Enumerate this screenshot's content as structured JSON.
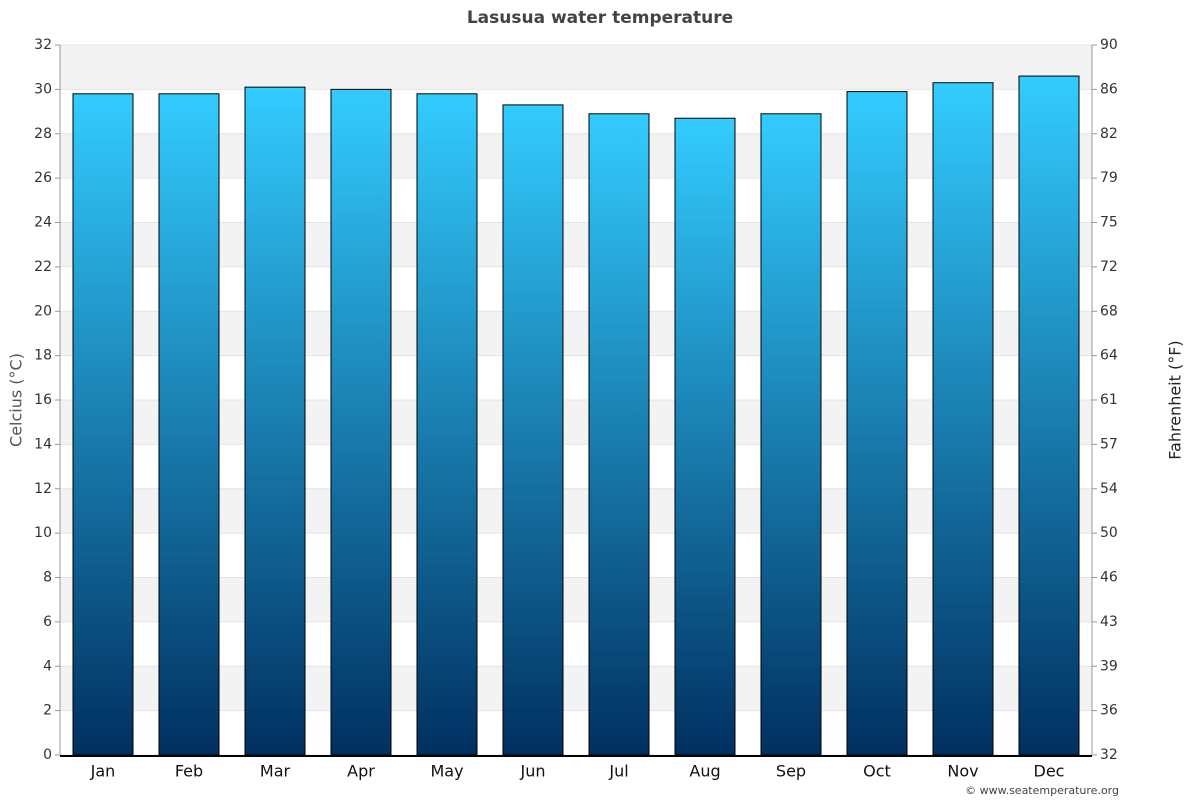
{
  "chart_data": {
    "type": "bar",
    "title": "Lasusua water temperature",
    "categories": [
      "Jan",
      "Feb",
      "Mar",
      "Apr",
      "May",
      "Jun",
      "Jul",
      "Aug",
      "Sep",
      "Oct",
      "Nov",
      "Dec"
    ],
    "values": [
      29.8,
      29.8,
      30.1,
      30.0,
      29.8,
      29.3,
      28.9,
      28.7,
      28.9,
      29.9,
      30.3,
      30.6
    ],
    "gradient": [
      "#33ccff",
      "#003060"
    ],
    "ylabel": "Celcius (°C)",
    "y2label": "Fahrenheit (°F)",
    "ylim": [
      0,
      32
    ],
    "yticks": [
      0,
      2,
      4,
      6,
      8,
      10,
      12,
      14,
      16,
      18,
      20,
      22,
      24,
      26,
      28,
      30,
      32
    ],
    "y2lim": [
      32,
      89.6
    ],
    "y2ticks": [
      32,
      {
        "value": 35.6,
        "label": "36"
      },
      {
        "value": 39.2,
        "label": "39"
      },
      {
        "value": 42.8,
        "label": "43"
      },
      {
        "value": 46.4,
        "label": "46"
      },
      50,
      {
        "value": 53.6,
        "label": "54"
      },
      {
        "value": 57.2,
        "label": "57"
      },
      {
        "value": 60.8,
        "label": "61"
      },
      {
        "value": 64.4,
        "label": "64"
      },
      68,
      {
        "value": 71.6,
        "label": "72"
      },
      {
        "value": 75.2,
        "label": "75"
      },
      {
        "value": 78.8,
        "label": "79"
      },
      {
        "value": 82.4,
        "label": "82"
      },
      86,
      {
        "value": 89.6,
        "label": "90"
      }
    ],
    "grid": true,
    "credit": "© www.seatemperature.org"
  }
}
